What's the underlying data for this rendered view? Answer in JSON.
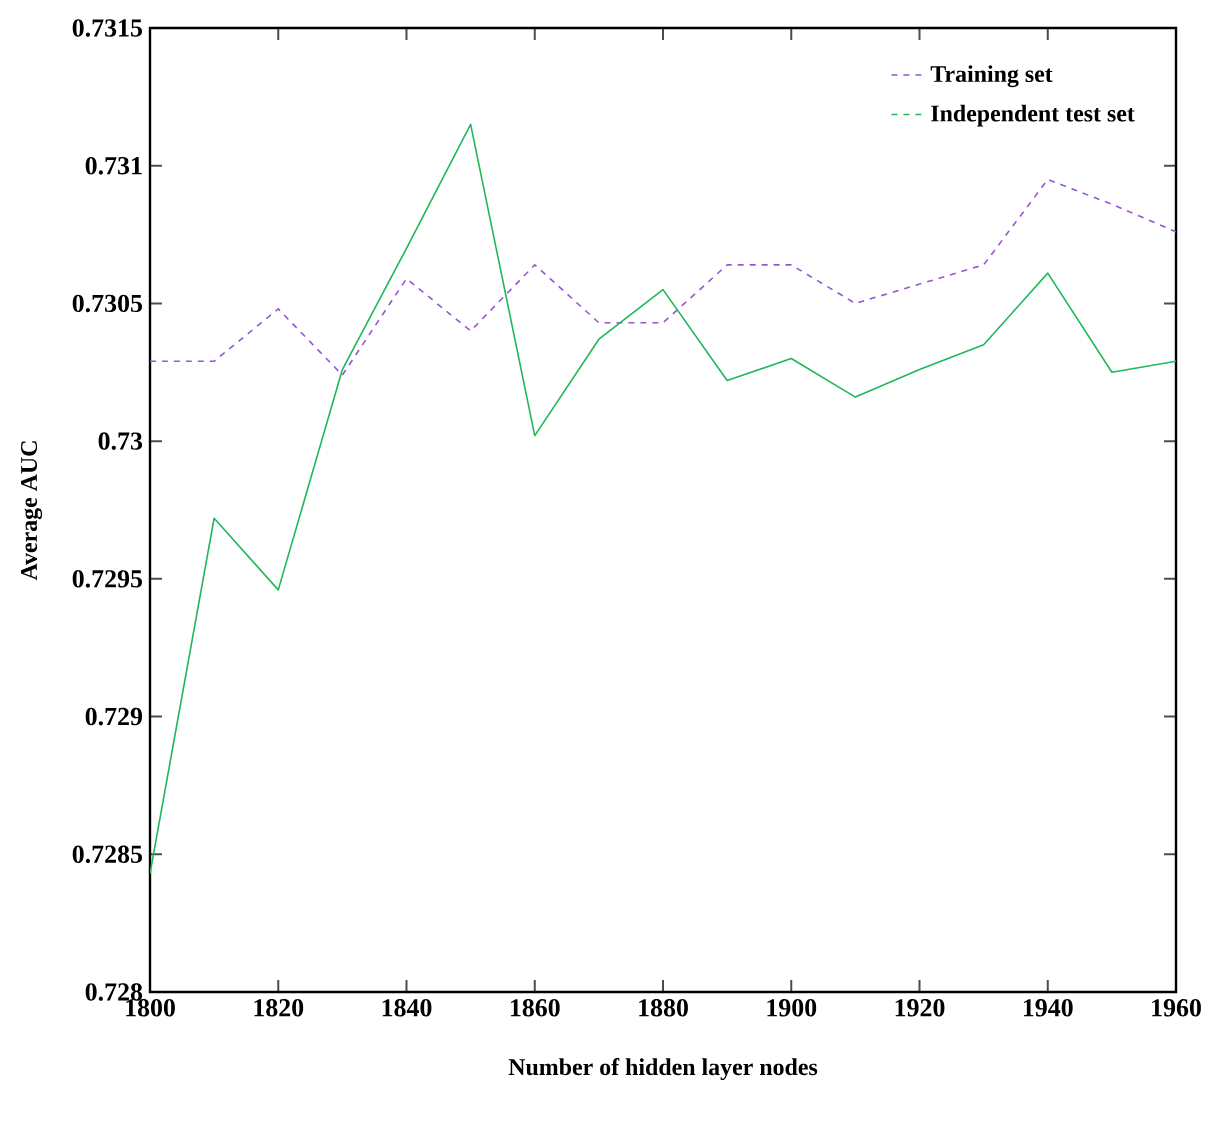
{
  "chart_data": {
    "type": "line",
    "xlabel": "Number of hidden layer nodes",
    "ylabel": "Average AUC",
    "x": [
      1800,
      1810,
      1820,
      1830,
      1840,
      1850,
      1860,
      1870,
      1880,
      1890,
      1900,
      1910,
      1920,
      1930,
      1940,
      1950,
      1960
    ],
    "series": [
      {
        "name": "Training set",
        "color": "#9655d2",
        "line_style": "dashed",
        "values": [
          0.73029,
          0.73029,
          0.73048,
          0.73024,
          0.73059,
          0.7304,
          0.73064,
          0.73043,
          0.73043,
          0.73064,
          0.73064,
          0.7305,
          0.73057,
          0.73064,
          0.73095,
          0.73086,
          0.73076
        ]
      },
      {
        "name": "Independent test set",
        "color": "#1fb75a",
        "line_style": "solid",
        "values": [
          0.72843,
          0.72972,
          0.72946,
          0.73026,
          0.7307,
          0.73115,
          0.73002,
          0.73037,
          0.73055,
          0.73022,
          0.7303,
          0.73016,
          0.73026,
          0.73035,
          0.73061,
          0.73025,
          0.73029
        ]
      }
    ],
    "xlim": [
      1800,
      1960
    ],
    "ylim": [
      0.728,
      0.7315
    ],
    "xticks": [
      1800,
      1820,
      1840,
      1860,
      1880,
      1900,
      1920,
      1940,
      1960
    ],
    "yticks": [
      0.728,
      0.7285,
      0.729,
      0.7295,
      0.73,
      0.7305,
      0.731,
      0.7315
    ],
    "grid": false,
    "legend": "top right",
    "marker": "none"
  }
}
